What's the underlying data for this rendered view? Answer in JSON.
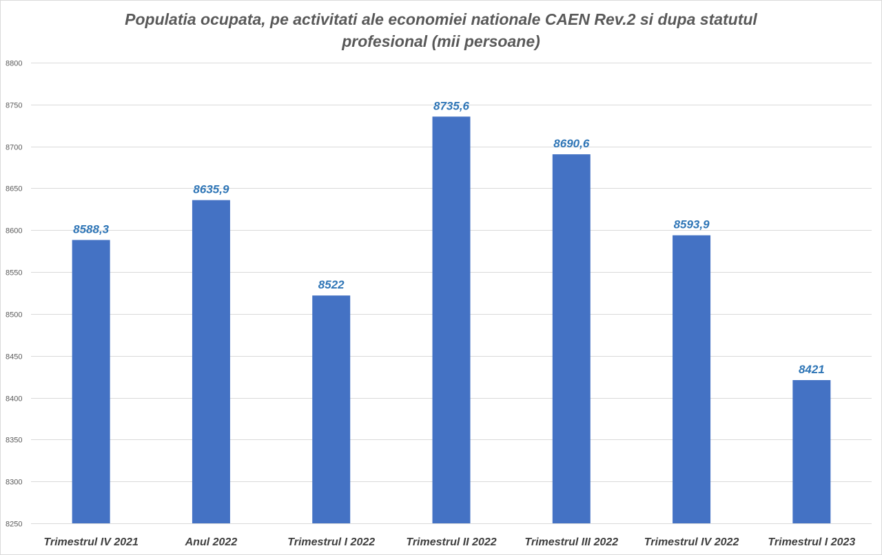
{
  "chart_data": {
    "type": "bar",
    "title_lines": [
      "Populatia ocupata,  pe activitati ale economiei nationale CAEN Rev.2 si dupa statutul",
      "profesional (mii persoane)"
    ],
    "categories": [
      "Trimestrul IV 2021",
      "Anul 2022",
      "Trimestrul I 2022",
      "Trimestrul II 2022",
      "Trimestrul III 2022",
      "Trimestrul IV 2022",
      "Trimestrul I 2023"
    ],
    "values": [
      8588.3,
      8635.9,
      8522,
      8735.6,
      8690.6,
      8593.9,
      8421
    ],
    "data_labels": [
      "8588,3",
      "8635,9",
      "8522",
      "8735,6",
      "8690,6",
      "8593,9",
      "8421"
    ],
    "ylim": [
      8250,
      8800
    ],
    "yticks": [
      8250,
      8300,
      8350,
      8400,
      8450,
      8500,
      8550,
      8600,
      8650,
      8700,
      8750,
      8800
    ],
    "grid": true,
    "legend": "none",
    "bar_color": "#4472c4",
    "label_color": "#2e75b6",
    "grid_color": "#d9d9d9"
  }
}
